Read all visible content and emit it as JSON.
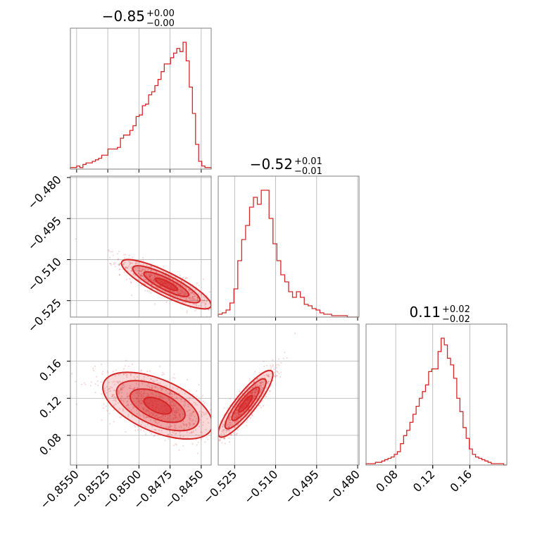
{
  "colors": {
    "accent": "#d62728",
    "frame": "#808080",
    "grid": "#b0b0b0",
    "background": "#ffffff"
  },
  "chart_data": {
    "type": "corner",
    "parameters": [
      {
        "title": {
          "main": "−0.85",
          "upper": "+0.00",
          "lower": "−0.00"
        },
        "range": [
          -0.8555,
          -0.8442
        ],
        "ticks": [
          -0.855,
          -0.8525,
          -0.85,
          -0.8475,
          -0.845
        ],
        "tick_labels": [
          "−0.8550",
          "−0.8525",
          "−0.8500",
          "−0.8475",
          "−0.8450"
        ]
      },
      {
        "title": {
          "main": "−0.52",
          "upper": "+0.01",
          "lower": "−0.01"
        },
        "range": [
          -0.531,
          -0.4795
        ],
        "ticks": [
          -0.525,
          -0.51,
          -0.495,
          -0.48
        ],
        "tick_labels": [
          "−0.525",
          "−0.510",
          "−0.495",
          "−0.480"
        ]
      },
      {
        "title": {
          "main": "0.11",
          "upper": "+0.02",
          "lower": "−0.02"
        },
        "range": [
          0.048,
          0.2
        ],
        "ticks": [
          0.08,
          0.12,
          0.16
        ],
        "tick_labels": [
          "0.08",
          "0.12",
          "0.16"
        ]
      }
    ],
    "histograms": [
      {
        "param": 0,
        "edges": [
          -0.8555,
          -0.8442
        ],
        "counts": [
          1,
          1,
          2,
          1,
          3,
          4,
          4,
          5,
          6,
          7,
          9,
          9,
          13,
          13,
          13,
          14,
          20,
          22,
          22,
          25,
          28,
          34,
          35,
          41,
          42,
          48,
          50,
          54,
          58,
          63,
          68,
          68,
          72,
          75,
          78,
          76,
          82,
          70,
          53,
          36,
          16,
          5,
          2,
          1,
          1
        ]
      },
      {
        "param": 1,
        "edges": [
          -0.531,
          -0.4795
        ],
        "counts": [
          2,
          3,
          5,
          10,
          20,
          40,
          55,
          65,
          78,
          85,
          80,
          90,
          90,
          70,
          52,
          40,
          30,
          25,
          18,
          14,
          18,
          14,
          9,
          8,
          6,
          5,
          3,
          2,
          2,
          1,
          1,
          1,
          1,
          0,
          0,
          0
        ]
      },
      {
        "param": 2,
        "edges": [
          0.048,
          0.2
        ],
        "counts": [
          1,
          1,
          1,
          2,
          2,
          3,
          4,
          5,
          6,
          8,
          10,
          16,
          22,
          26,
          32,
          38,
          44,
          50,
          55,
          60,
          70,
          72,
          72,
          85,
          95,
          90,
          80,
          75,
          65,
          50,
          40,
          28,
          20,
          12,
          8,
          6,
          5,
          4,
          3,
          2,
          1,
          1,
          1,
          1,
          0
        ]
      }
    ],
    "pairs": [
      {
        "x_param": 0,
        "y_param": 1,
        "center": [
          -0.8478,
          -0.519
        ],
        "spread": [
          0.0018,
          0.0045
        ],
        "rho": -0.85,
        "samples": 900
      },
      {
        "x_param": 0,
        "y_param": 2,
        "center": [
          -0.8485,
          0.112
        ],
        "spread": [
          0.0022,
          0.018
        ],
        "rho": -0.55,
        "samples": 900
      },
      {
        "x_param": 1,
        "y_param": 2,
        "center": [
          -0.521,
          0.114
        ],
        "spread": [
          0.005,
          0.018
        ],
        "rho": 0.88,
        "samples": 900
      }
    ],
    "grid": true,
    "legend": "none"
  }
}
